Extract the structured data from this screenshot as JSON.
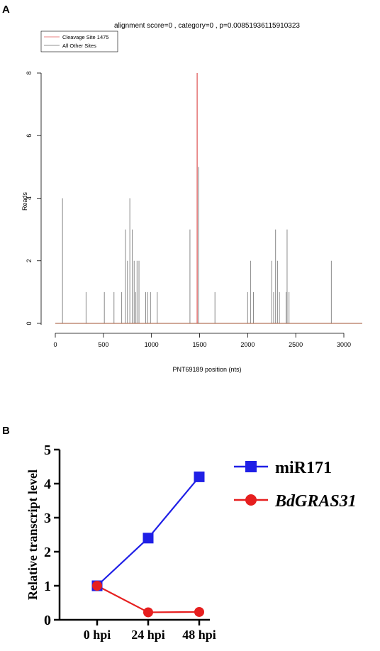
{
  "panels": {
    "a_label": "A",
    "b_label": "B"
  },
  "chart_data": [
    {
      "type": "bar",
      "title": "alignment score=0 , category=0 , p=0.00851936115910323",
      "xlabel": "PNT69189 position (nts)",
      "ylabel": "Reads",
      "xlim": [
        0,
        3200
      ],
      "ylim": [
        0,
        8
      ],
      "x_ticks": [
        "0",
        "500",
        "1000",
        "1500",
        "2000",
        "2500",
        "3000"
      ],
      "y_ticks": [
        "0",
        "2",
        "4",
        "6",
        "8"
      ],
      "legend_position": "top-left",
      "legend": [
        {
          "name": "Cleavage Site 1475",
          "color": "#e88080"
        },
        {
          "name": "All Other Sites",
          "color": "#909090"
        }
      ],
      "cleavage_site": {
        "x": 1475,
        "value": 8
      },
      "other_sites": [
        {
          "x": 75,
          "value": 4
        },
        {
          "x": 320,
          "value": 1
        },
        {
          "x": 510,
          "value": 1
        },
        {
          "x": 610,
          "value": 1
        },
        {
          "x": 690,
          "value": 1
        },
        {
          "x": 730,
          "value": 3
        },
        {
          "x": 750,
          "value": 2
        },
        {
          "x": 775,
          "value": 4
        },
        {
          "x": 800,
          "value": 3
        },
        {
          "x": 820,
          "value": 2
        },
        {
          "x": 835,
          "value": 1
        },
        {
          "x": 850,
          "value": 2
        },
        {
          "x": 870,
          "value": 2
        },
        {
          "x": 940,
          "value": 1
        },
        {
          "x": 960,
          "value": 1
        },
        {
          "x": 990,
          "value": 1
        },
        {
          "x": 1060,
          "value": 1
        },
        {
          "x": 1400,
          "value": 3
        },
        {
          "x": 1490,
          "value": 5
        },
        {
          "x": 1660,
          "value": 1
        },
        {
          "x": 2000,
          "value": 1
        },
        {
          "x": 2030,
          "value": 2
        },
        {
          "x": 2060,
          "value": 1
        },
        {
          "x": 2250,
          "value": 2
        },
        {
          "x": 2270,
          "value": 1
        },
        {
          "x": 2290,
          "value": 3
        },
        {
          "x": 2310,
          "value": 2
        },
        {
          "x": 2330,
          "value": 1
        },
        {
          "x": 2400,
          "value": 1
        },
        {
          "x": 2410,
          "value": 3
        },
        {
          "x": 2430,
          "value": 1
        },
        {
          "x": 2870,
          "value": 2
        }
      ]
    },
    {
      "type": "line",
      "ylabel": "Relative transcript level",
      "categories": [
        "0 hpi",
        "24 hpi",
        "48 hpi"
      ],
      "ylim": [
        0,
        5
      ],
      "y_ticks": [
        "0",
        "1",
        "2",
        "3",
        "4",
        "5"
      ],
      "legend_position": "right",
      "series": [
        {
          "name": "miR171",
          "color": "#1f1fe6",
          "marker": "square",
          "values": [
            1.0,
            2.4,
            4.2
          ]
        },
        {
          "name": "BdGRAS31",
          "color": "#e61f1f",
          "marker": "circle",
          "values": [
            1.0,
            0.22,
            0.23
          ]
        }
      ]
    }
  ]
}
